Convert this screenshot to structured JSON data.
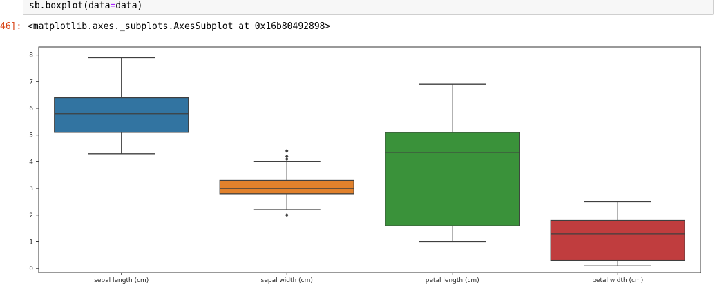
{
  "input_cell": {
    "code_prefix": "sb.boxplot(data",
    "code_eq": "=",
    "code_suffix": "data)"
  },
  "output": {
    "prompt": "46]:",
    "repr": "<matplotlib.axes._subplots.AxesSubplot at 0x16b80492898>"
  },
  "chart_data": {
    "type": "box",
    "title": "",
    "xlabel": "",
    "ylabel": "",
    "ylim": [
      -0.15,
      8.3
    ],
    "yticks": [
      0,
      1,
      2,
      3,
      4,
      5,
      6,
      7,
      8
    ],
    "grid": false,
    "categories": [
      "sepal length (cm)",
      "sepal width (cm)",
      "petal length (cm)",
      "petal width (cm)"
    ],
    "boxes": [
      {
        "name": "sepal length (cm)",
        "whisker_low": 4.3,
        "q1": 5.1,
        "median": 5.8,
        "q3": 6.4,
        "whisker_high": 7.9,
        "outliers": [],
        "color": "#3274a1"
      },
      {
        "name": "sepal width (cm)",
        "whisker_low": 2.2,
        "q1": 2.8,
        "median": 3.0,
        "q3": 3.3,
        "whisker_high": 4.0,
        "outliers": [
          2.0,
          4.1,
          4.2,
          4.4
        ],
        "color": "#e1812c"
      },
      {
        "name": "petal length (cm)",
        "whisker_low": 1.0,
        "q1": 1.6,
        "median": 4.35,
        "q3": 5.1,
        "whisker_high": 6.9,
        "outliers": [],
        "color": "#3a923a"
      },
      {
        "name": "petal width (cm)",
        "whisker_low": 0.1,
        "q1": 0.3,
        "median": 1.3,
        "q3": 1.8,
        "whisker_high": 2.5,
        "outliers": [],
        "color": "#c03d3e"
      }
    ]
  }
}
